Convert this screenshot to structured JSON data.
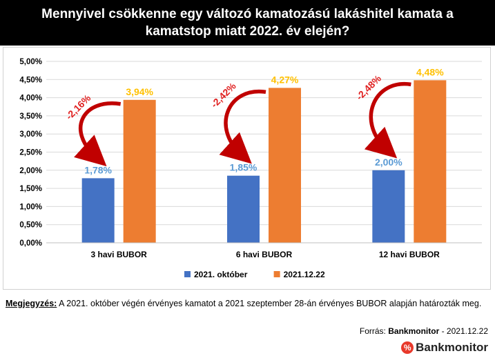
{
  "chart_data": {
    "type": "bar",
    "title": "Mennyivel csökkenne egy változó kamatozású lakáshitel kamata a kamatstop miatt 2022. év elején?",
    "categories": [
      "3 havi BUBOR",
      "6 havi BUBOR",
      "12 havi BUBOR"
    ],
    "series": [
      {
        "name": "2021. október",
        "values": [
          1.78,
          1.85,
          2.0
        ],
        "labels": [
          "1,78%",
          "1,85%",
          "2,00%"
        ],
        "color": "#4472c4",
        "label_color": "#5b9bd5"
      },
      {
        "name": "2021.12.22",
        "values": [
          3.94,
          4.27,
          4.48
        ],
        "labels": [
          "3,94%",
          "4,27%",
          "4,48%"
        ],
        "color": "#ed7d31",
        "label_color": "#ffc000"
      }
    ],
    "annotations": [
      "-2,16%",
      "-2,42%",
      "-2,48%"
    ],
    "annotation_color": "#e02020",
    "arrow_color": "#c00000",
    "yticks": [
      "0,00%",
      "0,50%",
      "1,00%",
      "1,50%",
      "2,00%",
      "2,50%",
      "3,00%",
      "3,50%",
      "4,00%",
      "4,50%",
      "5,00%"
    ],
    "ylim": [
      0,
      5
    ],
    "legend_position": "bottom",
    "grid": true
  },
  "note": {
    "label": "Megjegyzés:",
    "text": " A 2021. október végén érvényes kamatot a 2021 szeptember 28-án érvényes BUBOR alapján határozták meg."
  },
  "source": {
    "label": "Forrás:",
    "name": "Bankmonitor",
    "date": " - 2021.12.22"
  },
  "logo": {
    "mark": "%",
    "text": "Bankmonitor"
  }
}
